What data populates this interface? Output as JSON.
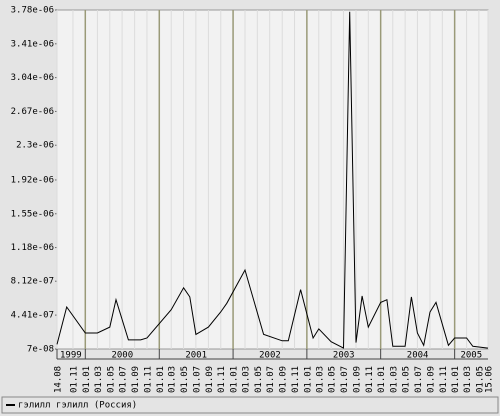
{
  "chart_data": {
    "type": "line",
    "legend": "гэлилл гэлилл (Россия)",
    "series": [
      {
        "name": "гэлилл гэлилл (Россия)",
        "color": "#000000",
        "x": [
          "1999-08-14",
          "1999-10-01",
          "2000-01-01",
          "2000-03-01",
          "2000-05-01",
          "2000-06-01",
          "2000-08-01",
          "2000-10-01",
          "2000-11-01",
          "2001-03-01",
          "2001-05-01",
          "2001-06-01",
          "2001-07-01",
          "2001-09-01",
          "2001-11-01",
          "2001-12-01",
          "2002-03-01",
          "2002-06-01",
          "2002-09-01",
          "2002-10-01",
          "2002-12-01",
          "2003-02-01",
          "2003-03-01",
          "2003-05-01",
          "2003-07-01",
          "2003-08-01",
          "2003-09-01",
          "2003-10-01",
          "2003-11-01",
          "2004-01-01",
          "2004-02-01",
          "2004-03-01",
          "2004-05-01",
          "2004-06-01",
          "2004-07-01",
          "2004-08-01",
          "2004-09-01",
          "2004-10-01",
          "2004-12-01",
          "2005-01-01",
          "2005-03-01",
          "2005-04-01",
          "2005-06-15"
        ],
        "values": [
          1.2e-07,
          5.3e-07,
          2.45e-07,
          2.45e-07,
          3.1e-07,
          6.1e-07,
          1.7e-07,
          1.7e-07,
          1.9e-07,
          5e-07,
          7.4e-07,
          6.4e-07,
          2.3e-07,
          3.1e-07,
          4.75e-07,
          5.7e-07,
          9.35e-07,
          2.3e-07,
          1.6e-07,
          1.6e-07,
          7.2e-07,
          1.9e-07,
          2.9e-07,
          1.5e-07,
          8e-08,
          3.76e-06,
          1.4e-07,
          6.5e-07,
          3.1e-07,
          5.8e-07,
          6.1e-07,
          1e-07,
          1e-07,
          6.4e-07,
          2.45e-07,
          1.1e-07,
          4.75e-07,
          5.8e-07,
          1.1e-07,
          1.9e-07,
          1.9e-07,
          1e-07,
          8e-08
        ]
      }
    ],
    "xlim": [
      "1999-08-14",
      "2005-06-15"
    ],
    "xticks": [
      {
        "value": "1999-08-14",
        "label": "14.08"
      },
      {
        "value": "1999-11-01",
        "label": "01.11"
      },
      {
        "value": "2000-01-01",
        "label": "01.01"
      },
      {
        "value": "2000-03-01",
        "label": "01.03"
      },
      {
        "value": "2000-05-01",
        "label": "01.05"
      },
      {
        "value": "2000-07-01",
        "label": "01.07"
      },
      {
        "value": "2000-09-01",
        "label": "01.09"
      },
      {
        "value": "2000-11-01",
        "label": "01.11"
      },
      {
        "value": "2001-01-01",
        "label": "01.01"
      },
      {
        "value": "2001-03-01",
        "label": "01.03"
      },
      {
        "value": "2001-05-01",
        "label": "01.05"
      },
      {
        "value": "2001-07-01",
        "label": "01.07"
      },
      {
        "value": "2001-09-01",
        "label": "01.09"
      },
      {
        "value": "2001-11-01",
        "label": "01.11"
      },
      {
        "value": "2002-01-01",
        "label": "01.01"
      },
      {
        "value": "2002-03-01",
        "label": "01.03"
      },
      {
        "value": "2002-05-01",
        "label": "01.05"
      },
      {
        "value": "2002-07-01",
        "label": "01.07"
      },
      {
        "value": "2002-09-01",
        "label": "01.09"
      },
      {
        "value": "2002-11-01",
        "label": "01.11"
      },
      {
        "value": "2003-01-01",
        "label": "01.01"
      },
      {
        "value": "2003-03-01",
        "label": "01.03"
      },
      {
        "value": "2003-05-01",
        "label": "01.05"
      },
      {
        "value": "2003-07-01",
        "label": "01.07"
      },
      {
        "value": "2003-09-01",
        "label": "01.09"
      },
      {
        "value": "2003-11-01",
        "label": "01.11"
      },
      {
        "value": "2004-01-01",
        "label": "01.01"
      },
      {
        "value": "2004-03-01",
        "label": "01.03"
      },
      {
        "value": "2004-05-01",
        "label": "01.05"
      },
      {
        "value": "2004-07-01",
        "label": "01.07"
      },
      {
        "value": "2004-09-01",
        "label": "01.09"
      },
      {
        "value": "2004-11-01",
        "label": "01.11"
      },
      {
        "value": "2005-01-01",
        "label": "01.01"
      },
      {
        "value": "2005-03-01",
        "label": "01.03"
      },
      {
        "value": "2005-05-01",
        "label": "01.05"
      },
      {
        "value": "2005-06-15",
        "label": "15.06"
      }
    ],
    "year_ticks": [
      {
        "value": "1999-08-14",
        "label": "1999"
      },
      {
        "value": "2000-01-01",
        "label": "2000"
      },
      {
        "value": "2001-01-01",
        "label": "2001"
      },
      {
        "value": "2002-01-01",
        "label": "2002"
      },
      {
        "value": "2003-01-01",
        "label": "2003"
      },
      {
        "value": "2004-01-01",
        "label": "2004"
      },
      {
        "value": "2005-01-01",
        "label": "2005"
      }
    ],
    "ylim": [
      7e-08,
      3.78e-06
    ],
    "yticks": [
      {
        "value": 7e-08,
        "label": "7e-08"
      },
      {
        "value": 4.41e-07,
        "label": "4.41e-07"
      },
      {
        "value": 8.12e-07,
        "label": "8.12e-07"
      },
      {
        "value": 1.18e-06,
        "label": "1.18e-06"
      },
      {
        "value": 1.55e-06,
        "label": "1.55e-06"
      },
      {
        "value": 1.92e-06,
        "label": "1.92e-06"
      },
      {
        "value": 2.3e-06,
        "label": "2.3e-06"
      },
      {
        "value": 2.67e-06,
        "label": "2.67e-06"
      },
      {
        "value": 3.04e-06,
        "label": "3.04e-06"
      },
      {
        "value": 3.41e-06,
        "label": "3.41e-06"
      },
      {
        "value": 3.78e-06,
        "label": "3.78e-06"
      }
    ],
    "grid": true
  }
}
